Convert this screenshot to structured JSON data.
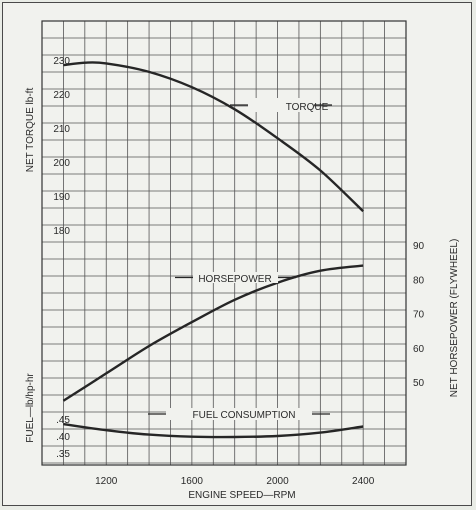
{
  "chart_data": {
    "type": "line",
    "x_axis": {
      "label": "ENGINE SPEED—RPM",
      "ticks": [
        1200,
        1600,
        2000,
        2400
      ],
      "range": [
        900,
        2600
      ]
    },
    "y_axes": [
      {
        "id": "torque",
        "label": "NET TORQUE lb-ft",
        "ticks": [
          180,
          190,
          200,
          210,
          220,
          230
        ]
      },
      {
        "id": "horsepower",
        "label": "NET HORSEPOWER (FLYWHEEL)",
        "ticks": [
          50,
          60,
          70,
          80,
          90
        ]
      },
      {
        "id": "fuel",
        "label": "FUEL—lb/hp-hr",
        "ticks": [
          ".35",
          ".40",
          ".45"
        ]
      }
    ],
    "grid": true,
    "series": [
      {
        "name": "TORQUE",
        "axis": "torque",
        "x": [
          1000,
          1100,
          1200,
          1400,
          1600,
          1800,
          2000,
          2200,
          2400
        ],
        "y": [
          228.5,
          229.2,
          229.0,
          226.5,
          222.0,
          215.5,
          207.0,
          197.5,
          185.5
        ]
      },
      {
        "name": "HORSEPOWER",
        "axis": "horsepower",
        "x": [
          1000,
          1200,
          1400,
          1600,
          1800,
          2000,
          2200,
          2400
        ],
        "y": [
          44.5,
          52.5,
          60.5,
          67.5,
          74.0,
          79.0,
          82.5,
          84.0
        ]
      },
      {
        "name": "FUEL CONSUMPTION",
        "axis": "fuel",
        "x": [
          1000,
          1200,
          1400,
          1600,
          1800,
          2000,
          2200,
          2400
        ],
        "y": [
          0.435,
          0.417,
          0.404,
          0.398,
          0.397,
          0.4,
          0.41,
          0.428
        ]
      }
    ]
  }
}
